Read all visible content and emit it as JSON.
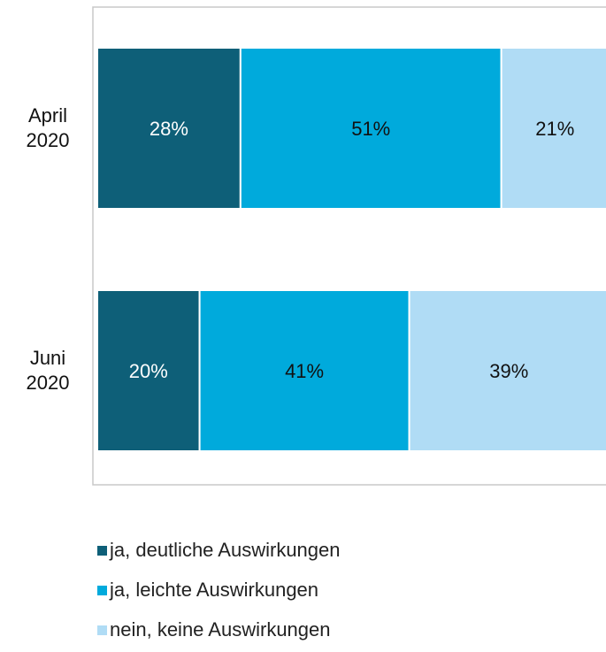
{
  "chart_data": {
    "type": "stacked-barh",
    "categories": [
      "April\n2020",
      "Juni\n2020"
    ],
    "series": [
      {
        "name": "ja, deutliche Auswirkungen",
        "color": "#0e5f78",
        "values": [
          28,
          20
        ],
        "value_labels": [
          "28%",
          "20%"
        ]
      },
      {
        "name": "ja, leichte Auswirkungen",
        "color": "#00aadc",
        "values": [
          51,
          41
        ],
        "value_labels": [
          "51%",
          "41%"
        ]
      },
      {
        "name": "nein, keine Auswirkungen",
        "color": "#b0dcf5",
        "values": [
          21,
          39
        ],
        "value_labels": [
          "21%",
          "39%"
        ]
      }
    ]
  }
}
